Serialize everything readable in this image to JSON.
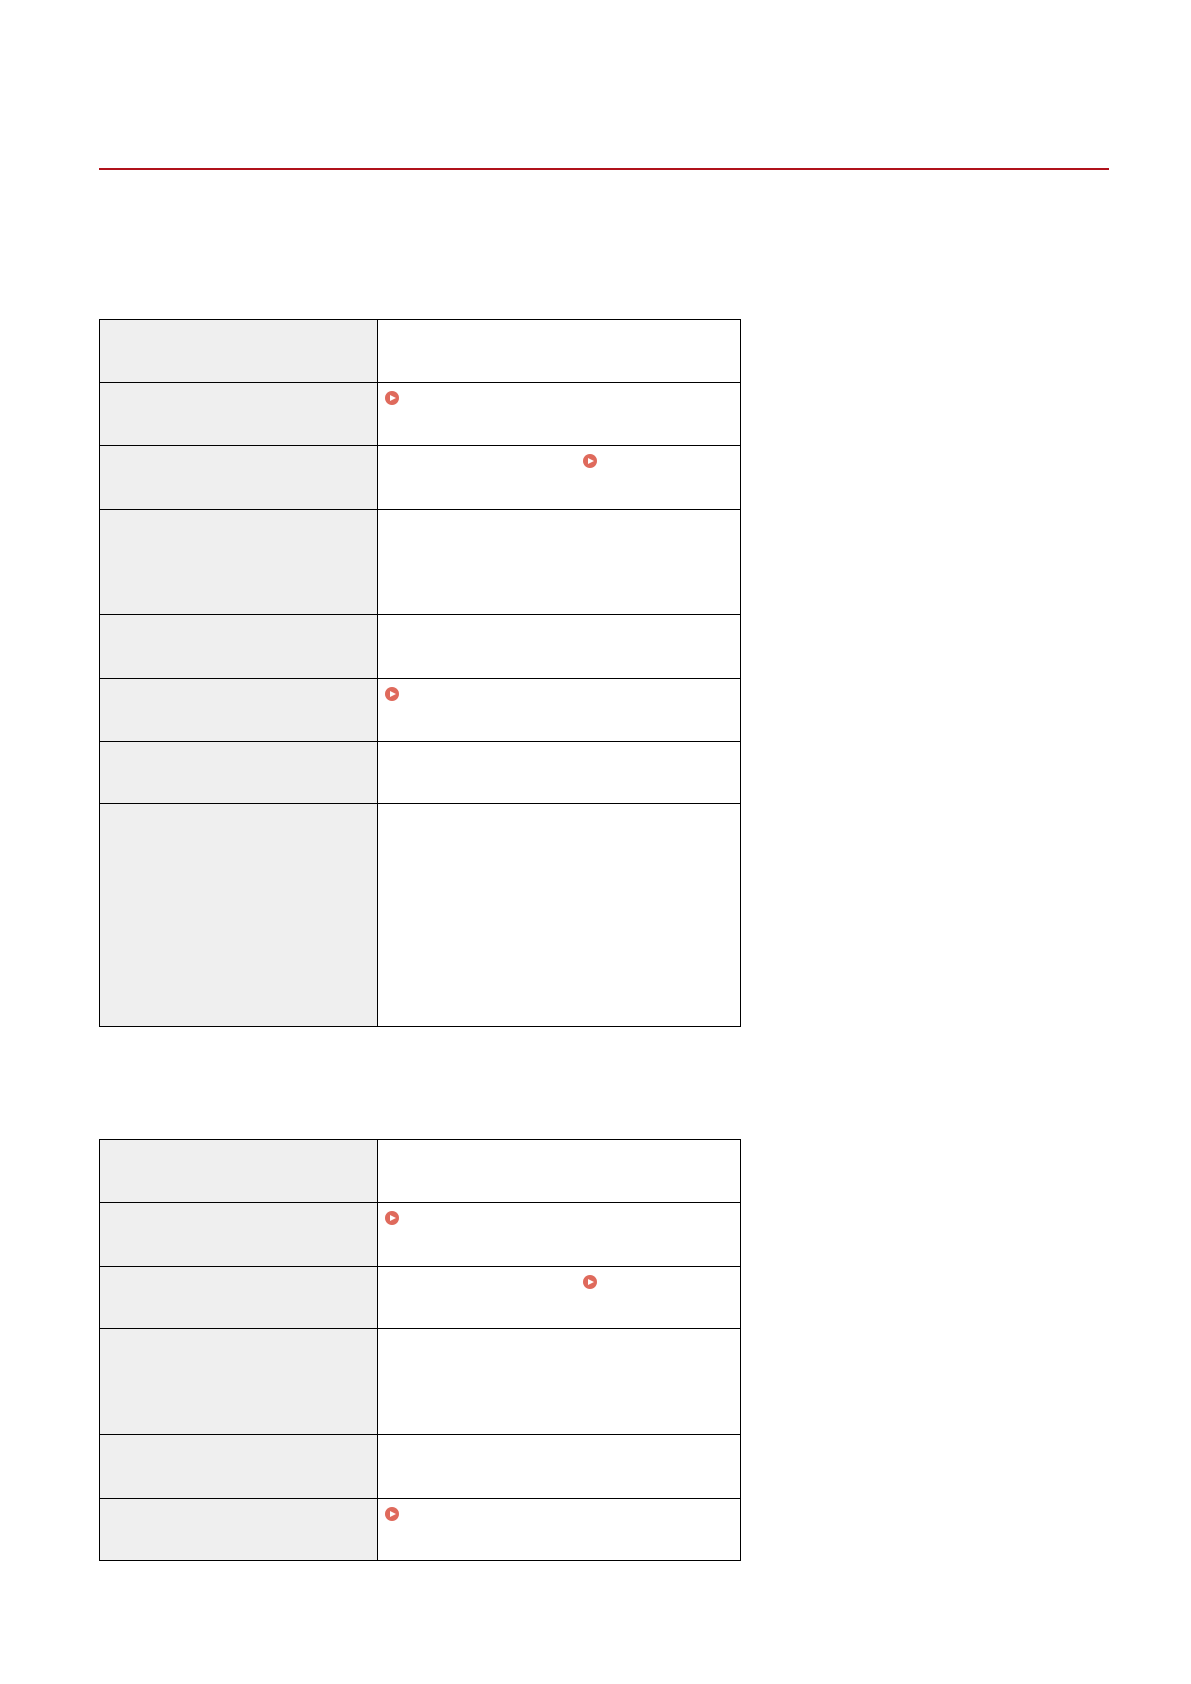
{
  "colors": {
    "accent_rule": "#b0121b",
    "link_icon": "#df6a5c",
    "key_cell_bg": "#efefef"
  },
  "icons": {
    "link": "circle-play-arrow-icon"
  },
  "tables": [
    {
      "rows": [
        {
          "link_icon": null
        },
        {
          "link_icon": "left"
        },
        {
          "link_icon": "middle"
        },
        {
          "link_icon": null
        },
        {
          "link_icon": null
        },
        {
          "link_icon": "left"
        },
        {
          "link_icon": null
        },
        {
          "link_icon": null
        }
      ]
    },
    {
      "rows": [
        {
          "link_icon": null
        },
        {
          "link_icon": "left"
        },
        {
          "link_icon": "middle"
        },
        {
          "link_icon": null
        },
        {
          "link_icon": null
        },
        {
          "link_icon": "left"
        }
      ]
    }
  ]
}
